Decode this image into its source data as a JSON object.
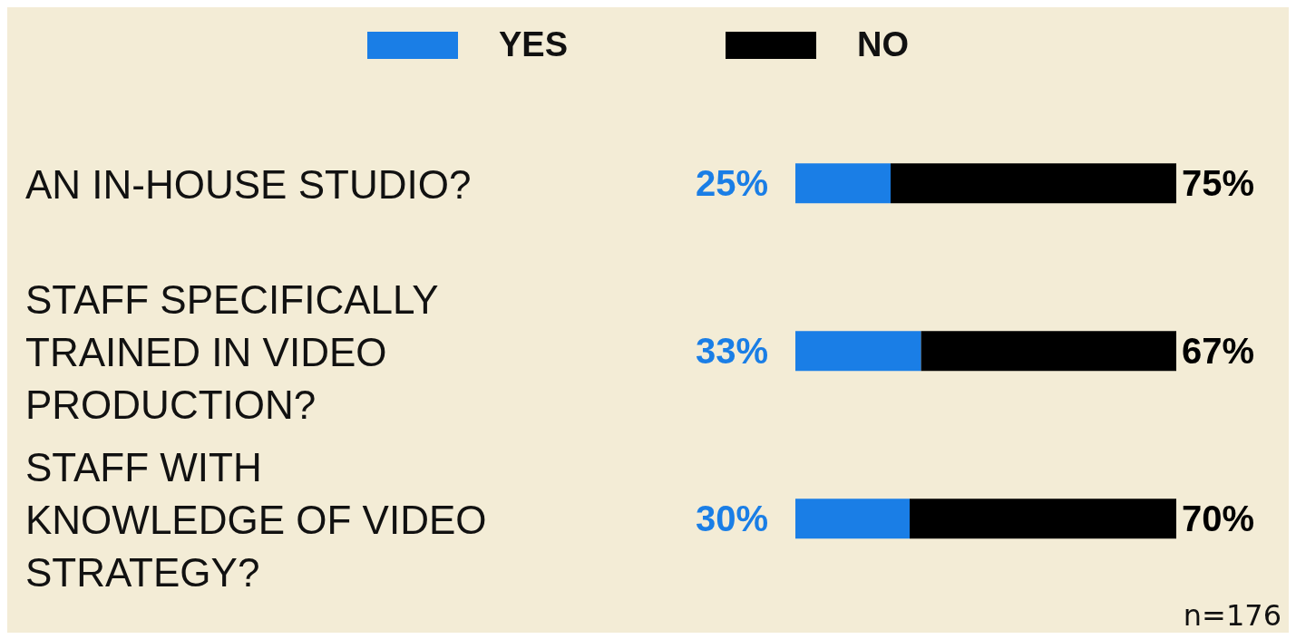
{
  "chart_data": {
    "type": "bar",
    "orientation": "horizontal",
    "stacked": true,
    "categories": [
      "AN IN-HOUSE STUDIO?",
      "STAFF SPECIFICALLY TRAINED IN VIDEO PRODUCTION?",
      "STAFF WITH KNOWLEDGE OF VIDEO STRATEGY?"
    ],
    "series": [
      {
        "name": "YES",
        "color": "#1a7ee6",
        "values": [
          25,
          33,
          30
        ],
        "value_labels": [
          "25%",
          "33%",
          "30%"
        ]
      },
      {
        "name": "NO",
        "color": "#000000",
        "values": [
          75,
          67,
          70
        ],
        "value_labels": [
          "75%",
          "67%",
          "70%"
        ]
      }
    ],
    "xlim": [
      0,
      100
    ],
    "tick_labels": "y",
    "legend": "top",
    "annotations": [
      "n=176"
    ]
  }
}
